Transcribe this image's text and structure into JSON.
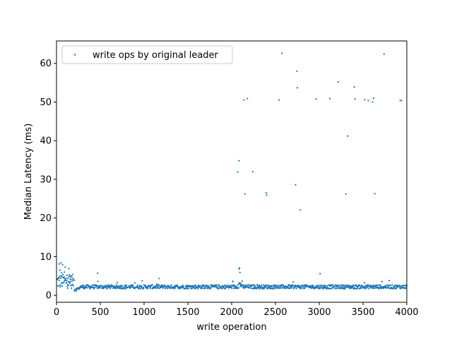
{
  "colors": {
    "series": "#1f77b4",
    "axis": "#000000",
    "legend_border": "#cccccc",
    "background": "#ffffff"
  },
  "chart_data": {
    "type": "scatter",
    "title": "",
    "xlabel": "write operation",
    "ylabel": "Median Latency (ms)",
    "xlim": [
      0,
      4000
    ],
    "ylim": [
      -1.8,
      65.8
    ],
    "xticks": [
      0,
      500,
      1000,
      1500,
      2000,
      2500,
      3000,
      3500,
      4000
    ],
    "yticks": [
      0,
      10,
      20,
      30,
      40,
      50,
      60
    ],
    "grid": false,
    "legend": {
      "position": "top-left",
      "entries": [
        "write ops by original leader"
      ]
    },
    "series": [
      {
        "name": "write ops by original leader",
        "points": [
          [
            30,
            8.1
          ],
          [
            40,
            6.5
          ],
          [
            50,
            8.4
          ],
          [
            60,
            5.8
          ],
          [
            70,
            7.9
          ],
          [
            80,
            4.6
          ],
          [
            90,
            6.0
          ],
          [
            100,
            7.3
          ],
          [
            110,
            3.9
          ],
          [
            120,
            5.2
          ],
          [
            130,
            4.4
          ],
          [
            140,
            6.9
          ],
          [
            150,
            3.1
          ],
          [
            160,
            4.8
          ],
          [
            170,
            2.6
          ],
          [
            180,
            3.7
          ],
          [
            470,
            5.7
          ],
          [
            2070,
            31.9
          ],
          [
            2085,
            34.8
          ],
          [
            2085,
            6.8
          ],
          [
            2090,
            7.1
          ],
          [
            2095,
            5.9
          ],
          [
            2140,
            50.5
          ],
          [
            2150,
            26.2
          ],
          [
            2180,
            50.9
          ],
          [
            2240,
            32.0
          ],
          [
            2395,
            26.5
          ],
          [
            2400,
            25.9
          ],
          [
            2540,
            50.5
          ],
          [
            2575,
            62.6
          ],
          [
            2730,
            28.6
          ],
          [
            2745,
            58.0
          ],
          [
            2750,
            53.7
          ],
          [
            2785,
            22.1
          ],
          [
            2965,
            50.8
          ],
          [
            3010,
            5.6
          ],
          [
            3120,
            50.9
          ],
          [
            3215,
            55.2
          ],
          [
            3305,
            26.2
          ],
          [
            3325,
            41.2
          ],
          [
            3400,
            53.9
          ],
          [
            3410,
            50.8
          ],
          [
            3520,
            50.6
          ],
          [
            3560,
            50.4
          ],
          [
            3610,
            50.0
          ],
          [
            3620,
            51.0
          ],
          [
            3635,
            26.3
          ],
          [
            3740,
            62.4
          ],
          [
            3925,
            50.4
          ],
          [
            3940,
            50.4
          ]
        ],
        "dense_band": {
          "x_range": [
            0,
            4000
          ],
          "median_ms": 2.2,
          "spread_ms": 0.5
        }
      }
    ]
  }
}
